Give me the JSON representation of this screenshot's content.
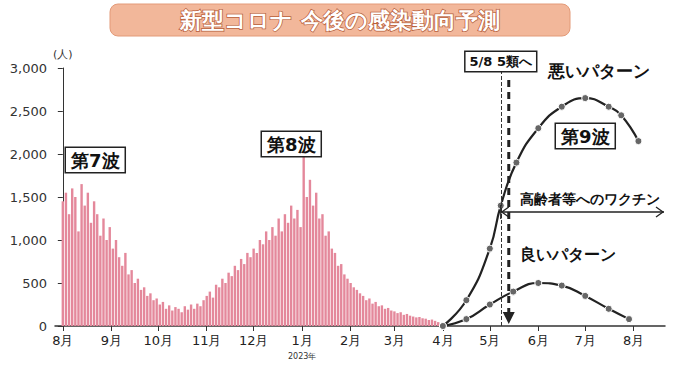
{
  "chart_data": {
    "type": "bar",
    "title": "新型コロナ 今後の感染動向予測",
    "y_label": "(人)",
    "xlim": [
      -5,
      385
    ],
    "xticks": [
      {
        "value": 0,
        "label": "8月"
      },
      {
        "value": 31,
        "label": "9月"
      },
      {
        "value": 61,
        "label": "10月"
      },
      {
        "value": 92,
        "label": "11月"
      },
      {
        "value": 122,
        "label": "12月"
      },
      {
        "value": 153,
        "label": "1月"
      },
      {
        "value": 184,
        "label": "2月"
      },
      {
        "value": 212,
        "label": "3月"
      },
      {
        "value": 243,
        "label": "4月"
      },
      {
        "value": 273,
        "label": "5月"
      },
      {
        "value": 304,
        "label": "6月"
      },
      {
        "value": 334,
        "label": "7月"
      },
      {
        "value": 365,
        "label": "8月"
      }
    ],
    "year_label": "2023年",
    "ylim": [
      0,
      3000
    ],
    "yticks": [
      0,
      500,
      1000,
      1500,
      2000,
      2500,
      3000
    ],
    "grid": false,
    "series": [
      {
        "type": "bar",
        "color": "#e4889b",
        "x": [
          0,
          2,
          4,
          6,
          8,
          10,
          12,
          14,
          16,
          18,
          20,
          22,
          24,
          26,
          28,
          30,
          32,
          34,
          36,
          38,
          40,
          42,
          44,
          46,
          48,
          50,
          52,
          54,
          56,
          58,
          60,
          62,
          64,
          66,
          68,
          70,
          72,
          74,
          76,
          78,
          80,
          82,
          84,
          86,
          88,
          90,
          92,
          94,
          96,
          98,
          100,
          102,
          104,
          106,
          108,
          110,
          112,
          114,
          116,
          118,
          120,
          122,
          124,
          126,
          128,
          130,
          132,
          134,
          136,
          138,
          140,
          142,
          144,
          146,
          148,
          150,
          152,
          154,
          156,
          158,
          160,
          162,
          164,
          166,
          168,
          170,
          172,
          174,
          176,
          178,
          180,
          182,
          184,
          186,
          188,
          190,
          192,
          194,
          196,
          198,
          200,
          202,
          204,
          206,
          208,
          210,
          212,
          214,
          216,
          218,
          220,
          222,
          224,
          226,
          228,
          230,
          232,
          234,
          236,
          238,
          240
        ],
        "values": [
          1450,
          1550,
          1300,
          1600,
          1500,
          1100,
          1650,
          1400,
          1550,
          1200,
          1450,
          1300,
          1050,
          1250,
          1000,
          1150,
          900,
          1000,
          800,
          700,
          850,
          600,
          650,
          500,
          550,
          420,
          450,
          350,
          380,
          300,
          320,
          250,
          280,
          200,
          240,
          180,
          220,
          200,
          160,
          230,
          190,
          250,
          200,
          260,
          230,
          300,
          350,
          400,
          330,
          480,
          450,
          550,
          500,
          620,
          580,
          700,
          650,
          780,
          720,
          850,
          800,
          900,
          850,
          1000,
          950,
          1100,
          1000,
          1150,
          1050,
          1250,
          1100,
          1300,
          1200,
          1400,
          1250,
          1350,
          1150,
          2100,
          1500,
          1700,
          1400,
          1550,
          1250,
          1300,
          1050,
          1100,
          900,
          850,
          700,
          720,
          600,
          550,
          500,
          450,
          420,
          380,
          350,
          300,
          320,
          260,
          280,
          230,
          240,
          200,
          210,
          180,
          170,
          150,
          160,
          130,
          140,
          120,
          110,
          100,
          105,
          90,
          85,
          70,
          75,
          60,
          45
        ]
      },
      {
        "type": "line",
        "name": "悪いパターン",
        "color": "#222222",
        "marker": "circle",
        "line_style": "solid",
        "x": [
          243,
          258,
          273,
          280,
          290,
          304,
          319,
          334,
          349,
          357,
          368
        ],
        "values": [
          0,
          300,
          900,
          1400,
          1900,
          2300,
          2550,
          2650,
          2550,
          2450,
          2150
        ]
      },
      {
        "type": "line",
        "name": "良いパターン",
        "color": "#222222",
        "marker": "circle",
        "line_style": "solid",
        "x": [
          243,
          258,
          273,
          288,
          304,
          319,
          334,
          349,
          362
        ],
        "values": [
          0,
          80,
          250,
          400,
          500,
          470,
          350,
          200,
          80
        ]
      }
    ],
    "annotations": [
      "第7波",
      "第8波",
      "第9波"
    ],
    "event": {
      "x": 280,
      "label": "5/8 5類へ"
    },
    "vaccine_label": "高齢者等へのワクチン"
  }
}
